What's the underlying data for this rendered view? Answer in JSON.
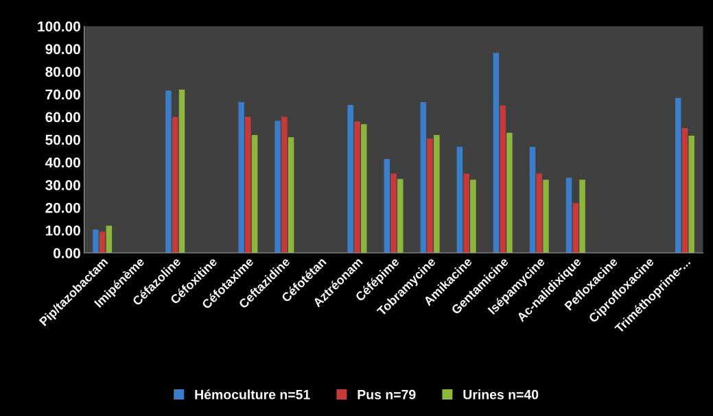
{
  "chart_data": {
    "type": "bar",
    "categories": [
      "Pip/tazobactam",
      "Imipénème",
      "Céfazoline",
      "Céfoxitine",
      "Céfotaxime",
      "Ceftazidine",
      "Céfotétan",
      "Aztréonam",
      "Céfépime",
      "Tobramycine",
      "Amikacine",
      "Gentamicine",
      "Isépamycine",
      "Ac-nalidixique",
      "Pefloxacine",
      "Ciprofloxacine",
      "Triméthoprime-..."
    ],
    "series": [
      {
        "name": "Hémoculture n=51",
        "color": "#3a7dc9",
        "values": [
          10.3,
          null,
          71.6,
          null,
          66.5,
          58.3,
          null,
          65.3,
          41.4,
          66.5,
          46.8,
          88.2,
          46.8,
          33.2,
          null,
          null,
          68.3
        ]
      },
      {
        "name": "Pus n=79",
        "color": "#c83a3a",
        "values": [
          9.4,
          null,
          60,
          null,
          60,
          60,
          null,
          58,
          35,
          50.4,
          35,
          65,
          35,
          22,
          null,
          null,
          55
        ]
      },
      {
        "name": "Urines n=40",
        "color": "#8db63c",
        "values": [
          12,
          null,
          72,
          null,
          52,
          51,
          null,
          56.8,
          32.6,
          52,
          32.3,
          53,
          32.3,
          32.3,
          null,
          null,
          51.7
        ]
      }
    ],
    "ylim": [
      0,
      100
    ],
    "yticks": [
      {
        "value": 0,
        "label": "0.00"
      },
      {
        "value": 10,
        "label": "10.00"
      },
      {
        "value": 20,
        "label": "20.00"
      },
      {
        "value": 30,
        "label": "30.00"
      },
      {
        "value": 40,
        "label": "40.00"
      },
      {
        "value": 50,
        "label": "50.00"
      },
      {
        "value": 60,
        "label": "60.00"
      },
      {
        "value": 70,
        "label": "70.00"
      },
      {
        "value": 80,
        "label": "80.00"
      },
      {
        "value": 90,
        "label": "90.00"
      },
      {
        "value": 100,
        "label": "100.00"
      }
    ],
    "grid": false,
    "legend": "bottom"
  }
}
